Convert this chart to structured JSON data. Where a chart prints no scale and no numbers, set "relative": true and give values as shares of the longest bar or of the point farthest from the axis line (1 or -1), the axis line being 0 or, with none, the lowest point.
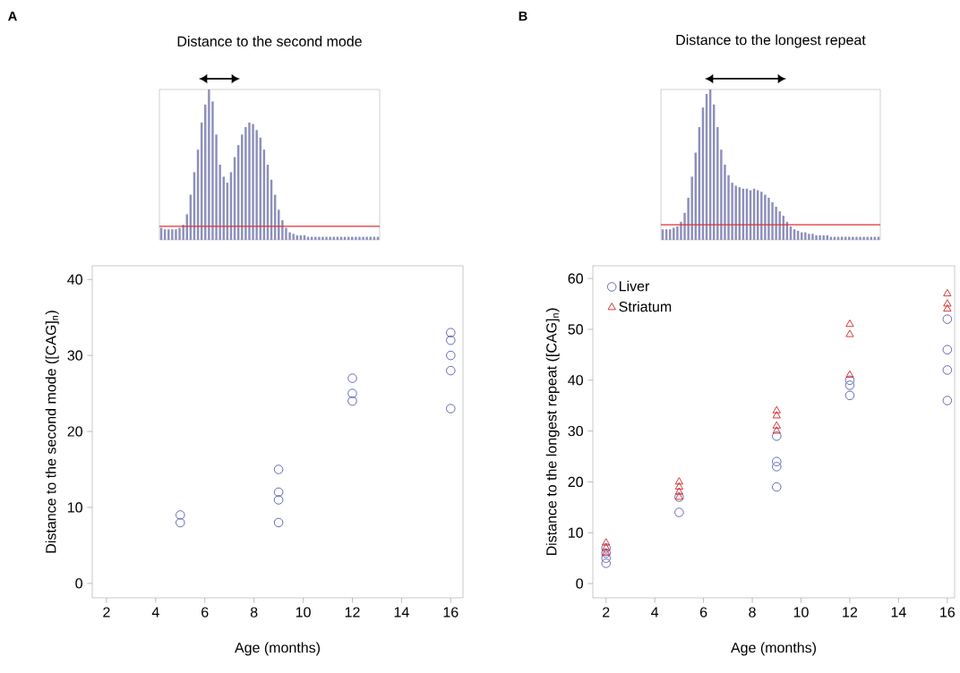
{
  "chart_data": [
    {
      "type": "bar",
      "relative": true,
      "title": "Distance to the second mode",
      "annotations": [
        "A"
      ],
      "color": "#8d8fbb",
      "categories": [
        null,
        null,
        null,
        null,
        null,
        null,
        null,
        null,
        null,
        null,
        null,
        null,
        null,
        null,
        null,
        null,
        null,
        null,
        null,
        null,
        null,
        null,
        null,
        null,
        null,
        null,
        null,
        null,
        null,
        null,
        null,
        null,
        null,
        null,
        null,
        null,
        null,
        null,
        null,
        null,
        null,
        null,
        null,
        null,
        null,
        null,
        null,
        null,
        null,
        null,
        null,
        null,
        null,
        null,
        null,
        null,
        null,
        null,
        null,
        null
      ],
      "values": [
        0.08,
        0.07,
        0.07,
        0.07,
        0.07,
        0.08,
        0.1,
        0.17,
        0.3,
        0.45,
        0.6,
        0.78,
        0.9,
        1.0,
        0.92,
        0.7,
        0.5,
        0.42,
        0.38,
        0.45,
        0.55,
        0.63,
        0.7,
        0.75,
        0.78,
        0.77,
        0.73,
        0.68,
        0.6,
        0.5,
        0.4,
        0.3,
        0.2,
        0.13,
        0.08,
        0.05,
        0.04,
        0.03,
        0.03,
        0.03,
        0.02,
        0.02,
        0.02,
        0.02,
        0.02,
        0.02,
        0.02,
        0.02,
        0.02,
        0.02,
        0.02,
        0.02,
        0.02,
        0.02,
        0.02,
        0.02,
        0.02,
        0.02,
        0.02,
        0.02
      ],
      "ref_lines": [
        {
          "axis": "y",
          "value": 0.09,
          "color": "#e03030"
        }
      ]
    },
    {
      "type": "bar",
      "relative": true,
      "title": "Distance to the longest repeat",
      "annotations": [
        "B"
      ],
      "color": "#8d8fbb",
      "categories": [
        null,
        null,
        null,
        null,
        null,
        null,
        null,
        null,
        null,
        null,
        null,
        null,
        null,
        null,
        null,
        null,
        null,
        null,
        null,
        null,
        null,
        null,
        null,
        null,
        null,
        null,
        null,
        null,
        null,
        null,
        null,
        null,
        null,
        null,
        null,
        null,
        null,
        null,
        null,
        null,
        null,
        null,
        null,
        null,
        null,
        null,
        null,
        null,
        null,
        null,
        null,
        null,
        null,
        null,
        null,
        null,
        null,
        null,
        null,
        null
      ],
      "values": [
        0.07,
        0.07,
        0.07,
        0.08,
        0.09,
        0.12,
        0.18,
        0.28,
        0.42,
        0.58,
        0.75,
        0.88,
        0.97,
        1.0,
        0.9,
        0.75,
        0.6,
        0.5,
        0.43,
        0.38,
        0.36,
        0.35,
        0.34,
        0.34,
        0.33,
        0.34,
        0.33,
        0.32,
        0.3,
        0.28,
        0.25,
        0.22,
        0.19,
        0.16,
        0.12,
        0.09,
        0.07,
        0.06,
        0.05,
        0.05,
        0.04,
        0.04,
        0.03,
        0.03,
        0.03,
        0.03,
        0.02,
        0.02,
        0.02,
        0.02,
        0.02,
        0.02,
        0.02,
        0.02,
        0.02,
        0.02,
        0.02,
        0.02,
        0.02,
        0.02
      ],
      "ref_lines": [
        {
          "axis": "y",
          "value": 0.1,
          "color": "#e03030"
        }
      ]
    },
    {
      "type": "scatter",
      "xlabel": "Age (months)",
      "ylabel": "Distance to the second mode ([CAG]$_{n}$)",
      "xlim": [
        1.42,
        16.5
      ],
      "ylim": [
        -1.9,
        41.8
      ],
      "xticks": [
        2,
        4,
        6,
        8,
        10,
        12,
        14,
        16
      ],
      "yticks": [
        0,
        10,
        20,
        30,
        40
      ],
      "grid": false,
      "legend": false,
      "series": [
        {
          "color": "#5a5fb0",
          "marker": "circle",
          "x": [
            5,
            5,
            9,
            9,
            9,
            9,
            12,
            12,
            12,
            16,
            16,
            16,
            16,
            16
          ],
          "values": [
            9,
            8,
            15,
            12,
            11,
            8,
            27,
            25,
            24,
            33,
            32,
            30,
            28,
            23
          ]
        }
      ]
    },
    {
      "type": "scatter",
      "xlabel": "Age (months)",
      "ylabel": "Distance to the longest repeat ([CAG]$_{n}$)",
      "xlim": [
        1.46,
        16.3
      ],
      "ylim": [
        -2.8,
        62.5
      ],
      "xticks": [
        2,
        4,
        6,
        8,
        10,
        12,
        14,
        16
      ],
      "yticks": [
        0,
        10,
        20,
        30,
        40,
        50,
        60
      ],
      "grid": false,
      "legend": "top left",
      "series": [
        {
          "name": "Liver",
          "color": "#5a5fb0",
          "marker": "circle",
          "x": [
            2,
            2,
            2,
            2,
            5,
            5,
            9,
            9,
            9,
            9,
            12,
            12,
            12,
            16,
            16,
            16,
            16
          ],
          "values": [
            4,
            5,
            6,
            7,
            14,
            17,
            19,
            23,
            24,
            29,
            37,
            39,
            40,
            36,
            42,
            46,
            52
          ]
        },
        {
          "name": "Striatum",
          "color": "#d42a2a",
          "marker": "triangle",
          "x": [
            2,
            2,
            2,
            5,
            5,
            5,
            5,
            9,
            9,
            9,
            9,
            12,
            12,
            12,
            16,
            16,
            16
          ],
          "values": [
            6,
            7,
            8,
            17,
            18,
            19,
            20,
            30,
            31,
            33,
            34,
            41,
            49,
            51,
            54,
            55,
            57
          ]
        }
      ]
    }
  ]
}
